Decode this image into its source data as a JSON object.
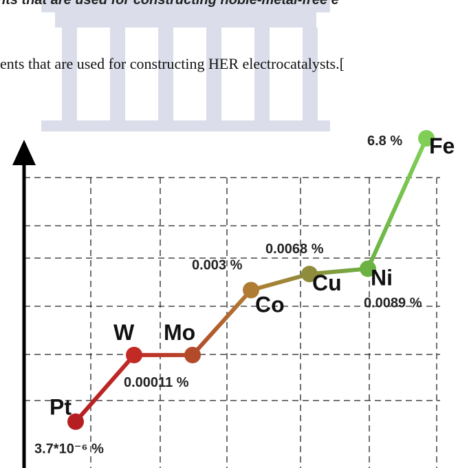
{
  "caption_fragments": [
    "nts that are used for constructing noble-metal-free e",
    "ents that are used for constructing HER electrocatalysts.["
  ],
  "chart_data": {
    "type": "line",
    "categories": [
      "Pt",
      "W",
      "Mo",
      "Co",
      "Cu",
      "Ni",
      "Fe"
    ],
    "values": [
      3.7e-06,
      0.00011,
      0.00011,
      0.003,
      0.0068,
      0.0089,
      6.8
    ],
    "value_labels": [
      "3.7*10⁻⁶ %",
      null,
      "0.00011 %",
      "0.003 %",
      "0.0068 %",
      "0.0089 %",
      "6.8 %"
    ],
    "colors": [
      "#b51f22",
      "#c22a26",
      "#b34a2a",
      "#b07c33",
      "#8f8d3c",
      "#6cb243",
      "#7fcf57"
    ],
    "log_scale": true,
    "ylim": [
      1e-06,
      10
    ],
    "grid": true
  }
}
